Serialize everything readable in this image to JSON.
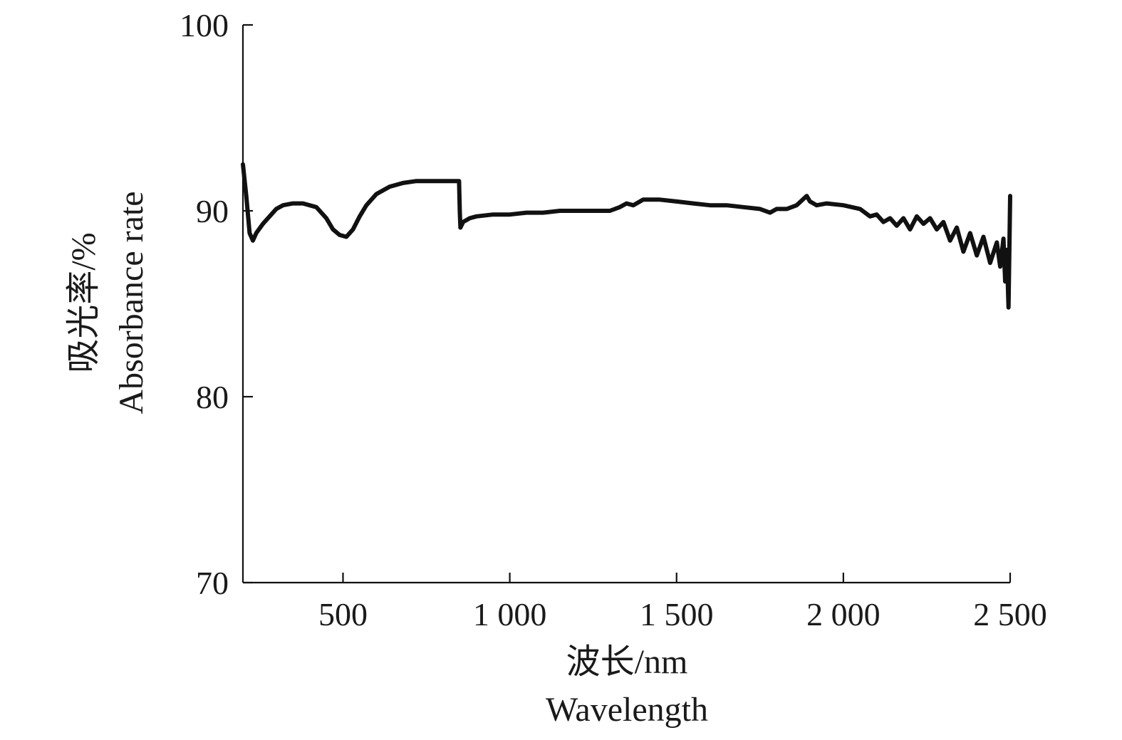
{
  "chart_data": {
    "type": "line",
    "xlabel": [
      "波长/nm",
      "Wavelength"
    ],
    "ylabel": [
      "吸光率/%",
      "Absorbance rate"
    ],
    "xlim": [
      200,
      2500
    ],
    "ylim": [
      70,
      100
    ],
    "x_ticks": [
      {
        "value": 500,
        "label": "500"
      },
      {
        "value": 1000,
        "label": "1 000"
      },
      {
        "value": 1500,
        "label": "1 500"
      },
      {
        "value": 2000,
        "label": "2 000"
      },
      {
        "value": 2500,
        "label": "2 500"
      }
    ],
    "y_ticks": [
      {
        "value": 70,
        "label": "70"
      },
      {
        "value": 80,
        "label": "80"
      },
      {
        "value": 90,
        "label": "90"
      },
      {
        "value": 100,
        "label": "100"
      }
    ],
    "grid": false,
    "legend": "none",
    "series": [
      {
        "color": "#111111",
        "x": [
          200,
          210,
          220,
          230,
          240,
          260,
          280,
          300,
          320,
          350,
          380,
          420,
          450,
          470,
          490,
          510,
          530,
          550,
          570,
          600,
          640,
          680,
          720,
          760,
          800,
          840,
          848,
          850,
          852,
          860,
          880,
          900,
          950,
          1000,
          1050,
          1100,
          1150,
          1200,
          1250,
          1300,
          1330,
          1350,
          1370,
          1400,
          1450,
          1500,
          1550,
          1600,
          1650,
          1700,
          1750,
          1780,
          1800,
          1830,
          1860,
          1890,
          1900,
          1920,
          1950,
          2000,
          2050,
          2080,
          2100,
          2120,
          2140,
          2160,
          2180,
          2200,
          2220,
          2240,
          2260,
          2280,
          2300,
          2320,
          2340,
          2360,
          2380,
          2400,
          2420,
          2440,
          2460,
          2470,
          2480,
          2485,
          2490,
          2495,
          2500
        ],
        "y": [
          92.5,
          90.8,
          88.8,
          88.4,
          88.8,
          89.3,
          89.7,
          90.1,
          90.3,
          90.4,
          90.4,
          90.2,
          89.6,
          89.0,
          88.7,
          88.6,
          89.0,
          89.7,
          90.3,
          90.9,
          91.3,
          91.5,
          91.6,
          91.6,
          91.6,
          91.6,
          91.6,
          90.0,
          89.1,
          89.4,
          89.6,
          89.7,
          89.8,
          89.8,
          89.9,
          89.9,
          90.0,
          90.0,
          90.0,
          90.0,
          90.2,
          90.4,
          90.3,
          90.6,
          90.6,
          90.5,
          90.4,
          90.3,
          90.3,
          90.2,
          90.1,
          89.9,
          90.1,
          90.1,
          90.3,
          90.8,
          90.5,
          90.3,
          90.4,
          90.3,
          90.1,
          89.7,
          89.8,
          89.4,
          89.6,
          89.2,
          89.6,
          89.0,
          89.7,
          89.3,
          89.6,
          89.0,
          89.4,
          88.4,
          89.1,
          87.8,
          88.8,
          87.6,
          88.6,
          87.2,
          88.3,
          87.0,
          88.5,
          86.2,
          87.9,
          84.8,
          90.8
        ]
      }
    ]
  }
}
